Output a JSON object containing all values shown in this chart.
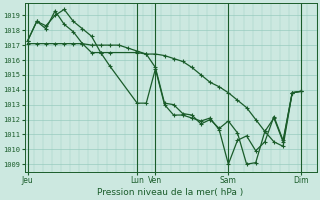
{
  "background_color": "#cce8e0",
  "grid_color": "#99ccbf",
  "line_color": "#1a5c2a",
  "marker_color": "#1a5c2a",
  "ylabel_ticks": [
    1009,
    1010,
    1011,
    1012,
    1013,
    1014,
    1015,
    1016,
    1017,
    1018,
    1019
  ],
  "ylim": [
    1008.5,
    1019.8
  ],
  "xlabel": "Pression niveau de la mer( hPa )",
  "xtick_labels": [
    "Jeu",
    "Lun",
    "Ven",
    "Sam",
    "Dim"
  ],
  "xtick_positions": [
    0,
    36,
    42,
    66,
    90
  ],
  "xlim": [
    -1,
    95
  ],
  "vline_positions": [
    0,
    36,
    42,
    66,
    90
  ],
  "series1_x": [
    0,
    3,
    6,
    9,
    12,
    15,
    18,
    21,
    24,
    27,
    30,
    33,
    36,
    39,
    42,
    45,
    48,
    51,
    54,
    57,
    60,
    63,
    66,
    69,
    72,
    75,
    78,
    81,
    84,
    87,
    90
  ],
  "series1_y": [
    1017.1,
    1017.1,
    1017.1,
    1017.1,
    1017.1,
    1017.1,
    1017.1,
    1017.0,
    1017.0,
    1017.0,
    1017.0,
    1016.8,
    1016.6,
    1016.4,
    1016.4,
    1016.3,
    1016.1,
    1015.9,
    1015.5,
    1015.0,
    1014.5,
    1014.2,
    1013.8,
    1013.3,
    1012.8,
    1012.0,
    1011.2,
    1010.5,
    1010.2,
    1013.8,
    1013.9
  ],
  "series2_x": [
    0,
    3,
    6,
    9,
    12,
    15,
    18,
    21,
    24,
    27,
    36,
    39,
    42,
    45,
    48,
    51,
    54,
    57,
    60,
    63,
    66,
    69,
    72,
    75,
    78,
    81,
    84,
    87,
    90
  ],
  "series2_y": [
    1017.3,
    1018.6,
    1018.3,
    1019.0,
    1019.4,
    1018.6,
    1018.1,
    1017.6,
    1016.5,
    1016.5,
    1016.5,
    1016.4,
    1015.5,
    1013.1,
    1013.0,
    1012.4,
    1012.3,
    1011.7,
    1012.0,
    1011.4,
    1011.9,
    1011.1,
    1009.0,
    1009.1,
    1011.2,
    1012.1,
    1010.5,
    1013.8,
    1013.9
  ],
  "series3_x": [
    0,
    3,
    6,
    9,
    12,
    15,
    18,
    21,
    24,
    27,
    36,
    39,
    42,
    45,
    48,
    51,
    54,
    57,
    60,
    63,
    66,
    69,
    72,
    75,
    78,
    81,
    84,
    87,
    90
  ],
  "series3_y": [
    1017.3,
    1018.6,
    1018.1,
    1019.3,
    1018.4,
    1017.9,
    1017.1,
    1016.5,
    1016.5,
    1015.6,
    1013.1,
    1013.1,
    1015.4,
    1013.0,
    1012.3,
    1012.3,
    1012.1,
    1011.9,
    1012.1,
    1011.3,
    1009.0,
    1010.6,
    1010.9,
    1009.9,
    1010.5,
    1012.2,
    1010.6,
    1013.8,
    1013.9
  ]
}
